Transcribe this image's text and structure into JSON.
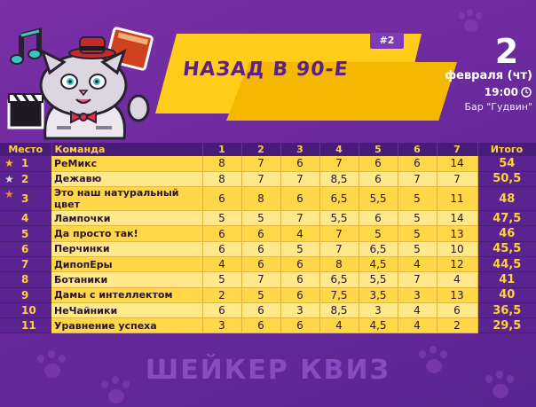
{
  "header": {
    "title": "НАЗАД В 90-Е",
    "tag": "#2",
    "date_day": "2",
    "date_month": "февраля (чт)",
    "time": "19:00",
    "venue": "Бар \"Гудвин\""
  },
  "table": {
    "columns": [
      "Место",
      "Команда",
      "1",
      "2",
      "3",
      "4",
      "5",
      "6",
      "7",
      "Итого"
    ],
    "rows": [
      {
        "place": "1",
        "team": "РеМикс",
        "scores": [
          "8",
          "7",
          "6",
          "7",
          "6",
          "6",
          "14"
        ],
        "total": "54",
        "medal": "gold"
      },
      {
        "place": "2",
        "team": "Дежавю",
        "scores": [
          "8",
          "7",
          "7",
          "8,5",
          "6",
          "7",
          "7"
        ],
        "total": "50,5",
        "medal": "silver"
      },
      {
        "place": "3",
        "team": "Это наш натуральный цвет",
        "scores": [
          "6",
          "8",
          "6",
          "6,5",
          "5,5",
          "5",
          "11"
        ],
        "total": "48",
        "medal": "bronze"
      },
      {
        "place": "4",
        "team": "Лампочки",
        "scores": [
          "5",
          "5",
          "7",
          "5,5",
          "6",
          "5",
          "14"
        ],
        "total": "47,5",
        "medal": ""
      },
      {
        "place": "5",
        "team": "Да просто так!",
        "scores": [
          "6",
          "6",
          "4",
          "7",
          "5",
          "5",
          "13"
        ],
        "total": "46",
        "medal": ""
      },
      {
        "place": "6",
        "team": "Перчинки",
        "scores": [
          "6",
          "6",
          "5",
          "7",
          "6,5",
          "5",
          "10"
        ],
        "total": "45,5",
        "medal": ""
      },
      {
        "place": "7",
        "team": "ДипопЕры",
        "scores": [
          "4",
          "6",
          "6",
          "8",
          "4,5",
          "4",
          "12"
        ],
        "total": "44,5",
        "medal": ""
      },
      {
        "place": "8",
        "team": "Ботаники",
        "scores": [
          "5",
          "7",
          "6",
          "6,5",
          "5,5",
          "7",
          "4"
        ],
        "total": "41",
        "medal": ""
      },
      {
        "place": "9",
        "team": "Дамы с интеллектом",
        "scores": [
          "2",
          "5",
          "6",
          "7,5",
          "3,5",
          "3",
          "13"
        ],
        "total": "40",
        "medal": ""
      },
      {
        "place": "10",
        "team": "НеЧайники",
        "scores": [
          "6",
          "6",
          "3",
          "8,5",
          "3",
          "4",
          "6"
        ],
        "total": "36,5",
        "medal": ""
      },
      {
        "place": "11",
        "team": "Уравнение успеха",
        "scores": [
          "3",
          "6",
          "6",
          "4",
          "4,5",
          "4",
          "2"
        ],
        "total": "29,5",
        "medal": ""
      }
    ]
  },
  "footer": {
    "logo_text": "ШЕЙКЕР КВИЗ"
  },
  "colors": {
    "background": "#6a2a9c",
    "banner": "#ffcc1a",
    "header_text": "#ffd23a",
    "gold": "#ffc21a",
    "silver": "#d8d8e8",
    "bronze": "#e8874a"
  },
  "icons": [
    "music-note-icon",
    "book-icon",
    "clapperboard-icon",
    "clock-icon",
    "star-icon",
    "paw-icon"
  ]
}
